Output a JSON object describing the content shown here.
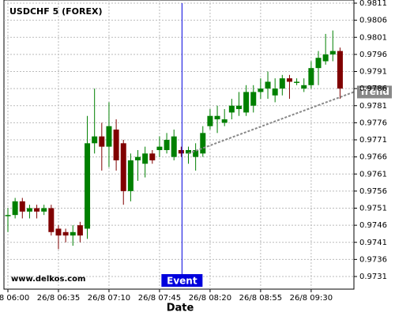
{
  "chart_data": {
    "type": "candlestick",
    "title": "USDCHF 5 (FOREX)",
    "x_label": "Date",
    "watermark": "www.delkos.com",
    "categories": [
      "26/8 06:00",
      null,
      null,
      null,
      null,
      null,
      null,
      "26/8 06:35",
      null,
      null,
      null,
      null,
      null,
      null,
      "26/8 07:10",
      null,
      null,
      null,
      null,
      null,
      null,
      "26/8 07:45",
      null,
      null,
      null,
      null,
      null,
      null,
      "26/8 08:20",
      null,
      null,
      null,
      null,
      null,
      null,
      "26/8 08:55",
      null,
      null,
      null,
      null,
      null,
      null,
      "26/8 09:30",
      null,
      null,
      null,
      null
    ],
    "open": [
      0.9749,
      0.9749,
      0.9753,
      0.975,
      0.9751,
      0.975,
      0.9751,
      0.9745,
      0.9744,
      0.9743,
      0.9746,
      0.9745,
      0.977,
      0.9772,
      0.9769,
      0.9774,
      0.977,
      0.9756,
      0.9765,
      0.9764,
      0.9767,
      0.9768,
      0.9768,
      0.9766,
      0.9768,
      0.9767,
      0.9766,
      0.9767,
      0.9775,
      0.9777,
      0.9776,
      0.9779,
      0.978,
      0.9779,
      0.9781,
      0.9785,
      0.9786,
      0.9784,
      0.9786,
      0.9789,
      0.9788,
      0.9786,
      0.9787,
      0.9792,
      0.9794,
      0.9796,
      0.9797
    ],
    "high": [
      0.9751,
      0.9754,
      0.9754,
      0.9752,
      0.9752,
      0.9752,
      0.9752,
      0.9746,
      0.9745,
      0.9746,
      0.9747,
      0.9778,
      0.9786,
      0.9776,
      0.9782,
      0.9777,
      0.9771,
      0.9767,
      0.9768,
      0.9769,
      0.9768,
      0.9772,
      0.9773,
      0.9774,
      0.9769,
      0.9769,
      0.977,
      0.9775,
      0.978,
      0.9781,
      0.978,
      0.9783,
      0.9785,
      0.9787,
      0.9787,
      0.9789,
      0.9791,
      0.9789,
      0.979,
      0.979,
      0.9789,
      0.9789,
      0.9794,
      0.9797,
      0.9802,
      0.9803,
      0.9798
    ],
    "low": [
      0.9744,
      0.9748,
      0.9748,
      0.9748,
      0.9748,
      0.9749,
      0.9743,
      0.9739,
      0.9741,
      0.974,
      0.9741,
      0.9742,
      0.9767,
      0.9762,
      0.9763,
      0.9762,
      0.9752,
      0.9753,
      0.9759,
      0.976,
      0.9764,
      0.9766,
      0.9767,
      0.9765,
      0.9766,
      0.9764,
      0.9762,
      0.9766,
      0.9774,
      0.9773,
      0.9775,
      0.9777,
      0.9778,
      0.9778,
      0.9779,
      0.9783,
      0.9783,
      0.9782,
      0.9784,
      0.9783,
      0.9787,
      0.9785,
      0.9786,
      0.9787,
      0.9793,
      0.9794,
      0.9783
    ],
    "close": [
      0.9749,
      0.9753,
      0.975,
      0.9751,
      0.975,
      0.9751,
      0.9744,
      0.9743,
      0.9743,
      0.9744,
      0.9743,
      0.977,
      0.9772,
      0.9769,
      0.9775,
      0.9765,
      0.9756,
      0.9765,
      0.9766,
      0.9767,
      0.9765,
      0.9769,
      0.9771,
      0.9772,
      0.9767,
      0.9768,
      0.9768,
      0.9773,
      0.9778,
      0.9778,
      0.9777,
      0.9781,
      0.9781,
      0.9785,
      0.9785,
      0.9786,
      0.9788,
      0.9786,
      0.9789,
      0.9788,
      0.9788,
      0.9787,
      0.9792,
      0.9795,
      0.9796,
      0.9797,
      0.9786
    ],
    "up_color": "#008000",
    "down_color": "#800000",
    "ylim": [
      0.9731,
      0.9811
    ],
    "yticks": [
      0.9731,
      0.9736,
      0.9741,
      0.9746,
      0.9751,
      0.9756,
      0.9761,
      0.9766,
      0.9771,
      0.9776,
      0.9781,
      0.9786,
      0.9791,
      0.9796,
      0.9801,
      0.9806,
      0.9811
    ],
    "grid": true,
    "event": {
      "label": "Event",
      "color": "#0000dd"
    },
    "trend": {
      "label": "Trend",
      "values": [
        0.9767,
        0.9785
      ],
      "color": "#888888"
    }
  }
}
